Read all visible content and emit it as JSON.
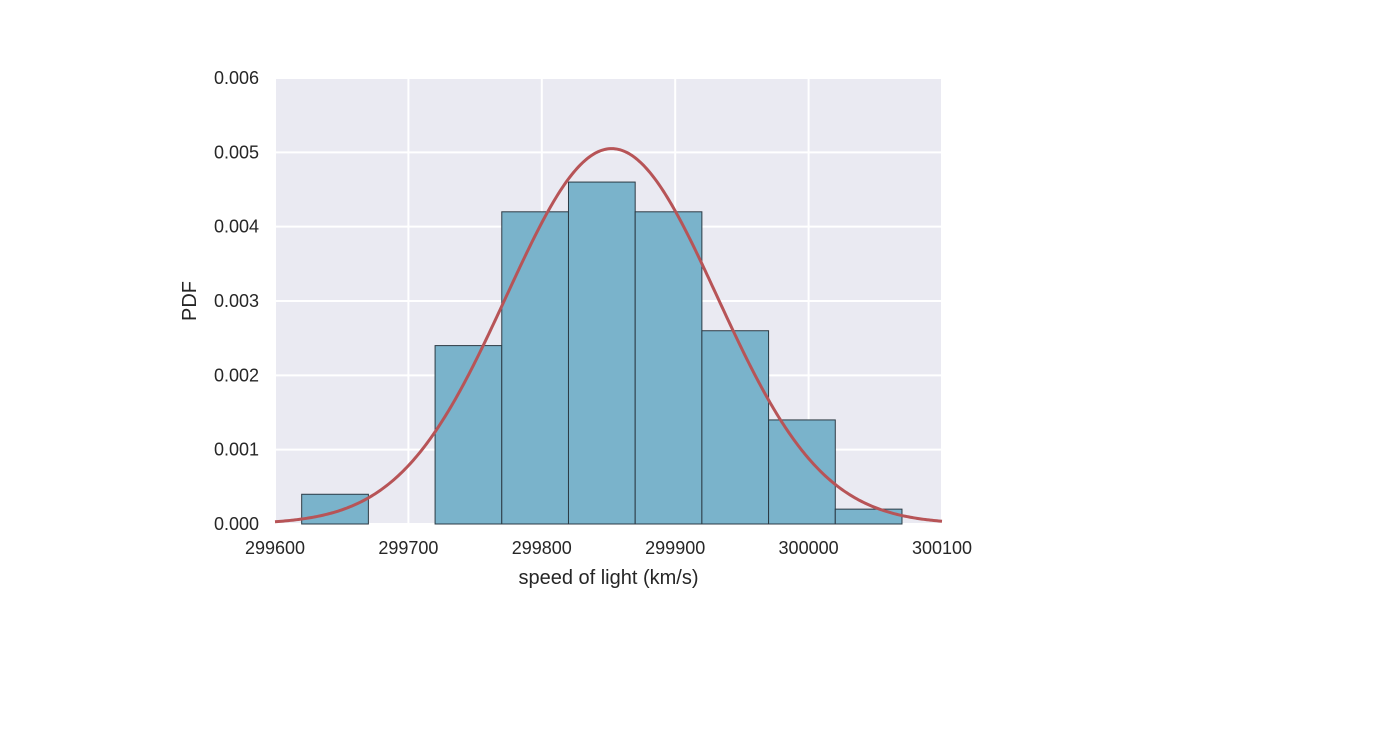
{
  "chart_data": {
    "type": "bar",
    "title": "",
    "xlabel": "speed of light (km/s)",
    "ylabel": "PDF",
    "xlim": [
      299600,
      300100
    ],
    "ylim": [
      0,
      0.006
    ],
    "xticks": [
      299600,
      299700,
      299800,
      299900,
      300000,
      300100
    ],
    "xtick_labels": [
      "299600",
      "299700",
      "299800",
      "299900",
      "300000",
      "300100"
    ],
    "yticks": [
      0,
      0.001,
      0.002,
      0.003,
      0.004,
      0.005,
      0.006
    ],
    "ytick_labels": [
      "0.000",
      "0.001",
      "0.002",
      "0.003",
      "0.004",
      "0.005",
      "0.006"
    ],
    "grid": true,
    "bin_edges": [
      299620,
      299670,
      299720,
      299770,
      299820,
      299870,
      299920,
      299970,
      300020,
      300070
    ],
    "values": [
      0.0004,
      0.0,
      0.0024,
      0.0042,
      0.0046,
      0.0042,
      0.0026,
      0.0014,
      0.0002
    ],
    "curve": {
      "type": "normal-pdf",
      "mean": 299852.4,
      "std": 79.0
    },
    "colors": {
      "bar": "#7ab3cb",
      "bar_edge": "#2b3a44",
      "curve": "#b75457",
      "plot_bg": "#eaeaf2",
      "grid": "#ffffff"
    }
  }
}
